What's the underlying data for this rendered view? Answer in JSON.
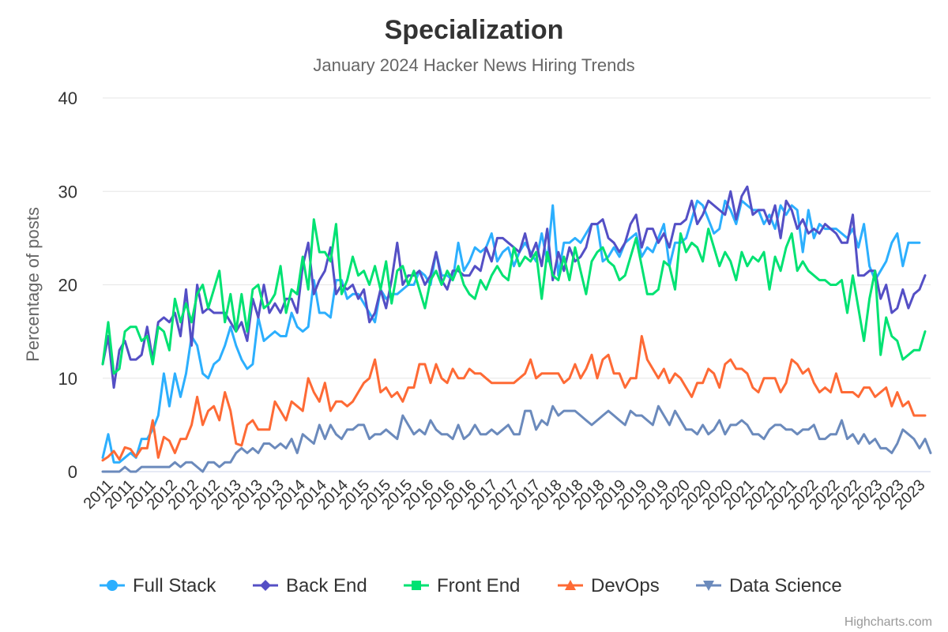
{
  "chart_data": {
    "type": "line",
    "title": "Specialization",
    "subtitle": "January 2024 Hacker News Hiring Trends",
    "xlabel": "",
    "ylabel": "Percentage of posts",
    "ylim": [
      0,
      40
    ],
    "y_ticks": [
      0,
      10,
      20,
      30,
      40
    ],
    "grid": true,
    "legend_position": "bottom",
    "credits": "Highcharts.com",
    "x_tick_labels": [
      "2011",
      "2011",
      "2011",
      "2012",
      "2012",
      "2012",
      "2013",
      "2013",
      "2013",
      "2014",
      "2014",
      "2014",
      "2015",
      "2015",
      "2015",
      "2016",
      "2016",
      "2016",
      "2017",
      "2017",
      "2017",
      "2018",
      "2018",
      "2018",
      "2019",
      "2019",
      "2019",
      "2020",
      "2020",
      "2020",
      "2021",
      "2021",
      "2021",
      "2022",
      "2022",
      "2022",
      "2023",
      "2023",
      "2023"
    ],
    "x_start": "2011-04",
    "x_interval": "monthly",
    "series": [
      {
        "name": "Full Stack",
        "color": "#2caffe",
        "marker": "circle",
        "values": [
          1.5,
          4.0,
          1.0,
          1.0,
          1.5,
          2.0,
          1.5,
          3.5,
          3.5,
          4.5,
          6.0,
          10.5,
          7.0,
          10.5,
          8.0,
          10.5,
          14.5,
          13.5,
          10.5,
          10.0,
          11.5,
          12.0,
          13.5,
          15.5,
          13.5,
          12.0,
          11.0,
          11.5,
          16.5,
          14.0,
          14.5,
          15.0,
          14.5,
          14.5,
          17.0,
          15.5,
          15.0,
          15.5,
          20.5,
          17.0,
          17.0,
          16.5,
          20.5,
          20.5,
          18.5,
          19.0,
          19.0,
          18.0,
          17.0,
          16.0,
          19.5,
          18.5,
          19.0,
          19.0,
          19.5,
          20.0,
          20.0,
          21.5,
          21.0,
          20.0,
          23.5,
          21.0,
          21.0,
          20.5,
          24.5,
          21.5,
          22.5,
          24.0,
          23.5,
          24.0,
          25.5,
          22.5,
          23.5,
          24.0,
          22.0,
          23.5,
          24.5,
          23.5,
          22.5,
          25.5,
          22.5,
          28.5,
          21.0,
          24.5,
          24.5,
          25.0,
          24.5,
          25.5,
          26.5,
          26.5,
          22.5,
          23.0,
          24.0,
          23.0,
          24.5,
          25.0,
          25.5,
          23.0,
          24.0,
          23.5,
          25.0,
          26.5,
          22.0,
          24.5,
          24.5,
          25.0,
          27.0,
          29.0,
          28.5,
          27.0,
          25.5,
          26.0,
          29.0,
          28.0,
          26.5,
          29.0,
          28.5,
          28.0,
          28.0,
          26.5,
          27.5,
          26.0,
          28.5,
          27.5,
          28.5,
          28.0,
          23.5,
          28.0,
          25.0,
          26.5,
          26.0,
          26.0,
          26.0,
          25.5,
          25.0,
          26.0,
          24.0,
          26.5,
          22.0,
          20.5,
          21.5,
          22.5,
          24.5,
          25.5,
          22.0,
          24.5,
          24.5,
          24.5
        ]
      },
      {
        "name": "Back End",
        "color": "#544fc5",
        "marker": "diamond",
        "values": [
          11.5,
          14.5,
          9.0,
          13.0,
          14.0,
          12.0,
          12.0,
          12.5,
          15.5,
          12.0,
          16.0,
          16.5,
          16.0,
          17.0,
          14.5,
          19.5,
          13.5,
          20.0,
          17.0,
          17.5,
          17.0,
          17.0,
          17.0,
          16.0,
          15.0,
          16.0,
          14.0,
          18.5,
          16.5,
          20.0,
          17.0,
          18.0,
          17.0,
          18.5,
          18.5,
          17.0,
          22.0,
          24.5,
          19.0,
          20.5,
          21.5,
          24.0,
          19.0,
          20.0,
          19.5,
          20.0,
          18.5,
          19.5,
          16.0,
          17.0,
          19.5,
          17.5,
          20.5,
          24.5,
          20.0,
          21.0,
          21.0,
          21.5,
          20.0,
          21.0,
          23.5,
          20.5,
          19.5,
          21.5,
          21.5,
          21.0,
          21.0,
          22.0,
          21.5,
          24.0,
          22.5,
          25.0,
          25.0,
          24.5,
          24.0,
          23.5,
          25.5,
          23.0,
          24.5,
          22.0,
          26.0,
          20.5,
          23.5,
          21.5,
          24.0,
          22.5,
          23.0,
          24.0,
          26.5,
          26.5,
          27.0,
          25.0,
          24.5,
          23.5,
          24.5,
          26.5,
          27.5,
          24.0,
          26.0,
          26.0,
          24.5,
          25.5,
          24.0,
          26.5,
          26.5,
          27.0,
          29.0,
          26.5,
          27.5,
          29.0,
          28.5,
          28.0,
          27.5,
          30.0,
          27.0,
          29.5,
          30.5,
          27.5,
          28.0,
          28.0,
          26.5,
          28.5,
          25.0,
          29.0,
          28.0,
          26.0,
          27.0,
          25.5,
          26.0,
          25.5,
          26.5,
          26.0,
          25.5,
          24.5,
          24.5,
          27.5,
          21.0,
          21.0,
          21.5,
          21.5,
          18.5,
          20.0,
          17.0,
          17.5,
          19.5,
          17.5,
          19.0,
          19.5,
          21.0
        ]
      },
      {
        "name": "Front End",
        "color": "#00e272",
        "marker": "square",
        "values": [
          11.5,
          16.0,
          10.5,
          11.0,
          15.0,
          15.5,
          15.5,
          14.0,
          14.5,
          11.5,
          15.5,
          15.0,
          13.0,
          18.5,
          16.0,
          18.0,
          16.0,
          19.0,
          20.0,
          17.5,
          19.5,
          21.5,
          16.0,
          19.0,
          15.0,
          19.0,
          15.0,
          19.5,
          20.0,
          17.5,
          18.0,
          19.0,
          22.0,
          17.0,
          19.5,
          19.0,
          23.0,
          19.5,
          27.0,
          23.5,
          23.5,
          22.5,
          26.5,
          19.0,
          20.5,
          23.0,
          21.0,
          21.5,
          20.0,
          22.0,
          19.5,
          22.5,
          18.0,
          21.5,
          22.0,
          20.0,
          21.5,
          19.5,
          17.5,
          20.5,
          21.5,
          20.0,
          21.5,
          20.5,
          22.0,
          20.0,
          19.0,
          18.5,
          20.5,
          19.5,
          21.0,
          22.0,
          21.0,
          20.5,
          24.0,
          22.0,
          23.0,
          22.5,
          23.5,
          18.5,
          23.5,
          21.0,
          20.5,
          23.0,
          20.5,
          24.0,
          21.5,
          19.0,
          22.5,
          23.5,
          24.0,
          22.5,
          22.0,
          20.5,
          21.0,
          23.0,
          25.0,
          22.0,
          19.0,
          19.0,
          19.5,
          22.5,
          22.0,
          19.5,
          25.5,
          23.5,
          24.5,
          24.0,
          22.5,
          26.0,
          24.0,
          22.0,
          23.5,
          22.5,
          20.5,
          23.5,
          22.0,
          23.0,
          22.5,
          23.5,
          19.5,
          23.0,
          21.5,
          24.0,
          25.5,
          21.5,
          22.5,
          21.5,
          21.0,
          20.5,
          20.5,
          20.0,
          20.0,
          20.5,
          17.0,
          21.0,
          17.5,
          14.0,
          18.5,
          21.5,
          12.5,
          16.5,
          14.5,
          14.0,
          12.0,
          12.5,
          13.0,
          13.0,
          15.0
        ]
      },
      {
        "name": "DevOps",
        "color": "#fe6a35",
        "marker": "triangle",
        "values": [
          1.2,
          1.6,
          2.2,
          1.3,
          2.6,
          2.4,
          1.6,
          2.5,
          2.5,
          5.5,
          1.5,
          3.7,
          3.3,
          2.0,
          3.5,
          3.5,
          5.0,
          8.0,
          5.0,
          6.5,
          7.0,
          5.5,
          8.5,
          6.5,
          3.0,
          2.8,
          5.0,
          5.5,
          4.5,
          4.5,
          4.5,
          7.5,
          6.5,
          5.5,
          7.5,
          7.0,
          6.5,
          10.0,
          8.5,
          7.5,
          9.5,
          6.5,
          7.5,
          7.5,
          7.0,
          7.5,
          8.5,
          9.5,
          10.0,
          12.0,
          8.5,
          9.0,
          8.0,
          8.5,
          7.5,
          9.0,
          9.0,
          11.5,
          11.5,
          9.5,
          11.5,
          10.0,
          9.5,
          11.0,
          10.0,
          10.0,
          11.0,
          10.5,
          10.5,
          10.0,
          9.5,
          9.5,
          9.5,
          9.5,
          9.5,
          10.0,
          10.5,
          12.0,
          10.0,
          10.5,
          10.5,
          10.5,
          10.5,
          9.5,
          10.0,
          11.5,
          10.0,
          11.0,
          12.5,
          10.0,
          12.0,
          12.5,
          10.5,
          10.5,
          9.0,
          10.0,
          10.0,
          14.5,
          12.0,
          11.0,
          10.0,
          11.0,
          9.5,
          10.5,
          10.0,
          9.0,
          8.0,
          9.5,
          9.5,
          11.0,
          10.5,
          9.0,
          11.5,
          12.0,
          11.0,
          11.0,
          10.5,
          9.0,
          8.5,
          10.0,
          10.0,
          10.0,
          8.5,
          9.5,
          12.0,
          11.5,
          10.5,
          11.0,
          9.5,
          8.5,
          9.0,
          8.5,
          10.5,
          8.5,
          8.5,
          8.5,
          8.0,
          9.0,
          9.0,
          8.0,
          8.5,
          9.0,
          7.0,
          8.5,
          7.0,
          7.5,
          6.0,
          6.0,
          6.0
        ]
      },
      {
        "name": "Data Science",
        "color": "#6b8abc",
        "marker": "triangle-down",
        "values": [
          0.0,
          0.0,
          0.0,
          0.0,
          0.5,
          0.0,
          0.0,
          0.5,
          0.5,
          0.5,
          0.5,
          0.5,
          0.5,
          1.0,
          0.5,
          1.0,
          1.0,
          0.5,
          0.0,
          1.0,
          1.0,
          0.5,
          1.0,
          1.0,
          2.0,
          2.5,
          2.0,
          2.5,
          2.0,
          3.0,
          3.0,
          2.5,
          3.0,
          2.5,
          3.5,
          2.0,
          4.0,
          3.5,
          3.0,
          5.0,
          3.5,
          5.0,
          4.0,
          3.5,
          4.5,
          4.5,
          5.0,
          5.0,
          3.5,
          4.0,
          4.0,
          4.5,
          4.0,
          3.5,
          6.0,
          5.0,
          4.0,
          4.5,
          4.0,
          5.5,
          4.5,
          4.0,
          4.0,
          3.5,
          5.0,
          3.5,
          4.0,
          5.0,
          4.0,
          4.0,
          4.5,
          4.0,
          4.5,
          5.0,
          4.0,
          4.0,
          6.5,
          6.5,
          4.5,
          5.5,
          5.0,
          7.0,
          6.0,
          6.5,
          6.5,
          6.5,
          6.0,
          5.5,
          5.0,
          5.5,
          6.0,
          6.5,
          6.0,
          5.5,
          5.0,
          6.5,
          6.0,
          6.0,
          5.5,
          5.0,
          7.0,
          6.0,
          5.0,
          6.5,
          5.5,
          4.5,
          4.5,
          4.0,
          5.0,
          4.0,
          4.5,
          5.5,
          4.0,
          5.0,
          5.0,
          5.5,
          5.0,
          4.0,
          4.0,
          3.5,
          4.5,
          5.0,
          5.0,
          4.5,
          4.5,
          4.0,
          4.5,
          4.5,
          5.0,
          3.5,
          3.5,
          4.0,
          4.0,
          5.5,
          3.5,
          4.0,
          3.0,
          4.0,
          3.0,
          3.5,
          2.5,
          2.5,
          2.0,
          3.0,
          4.5,
          4.0,
          3.5,
          2.5,
          3.5,
          2.0
        ]
      }
    ]
  }
}
